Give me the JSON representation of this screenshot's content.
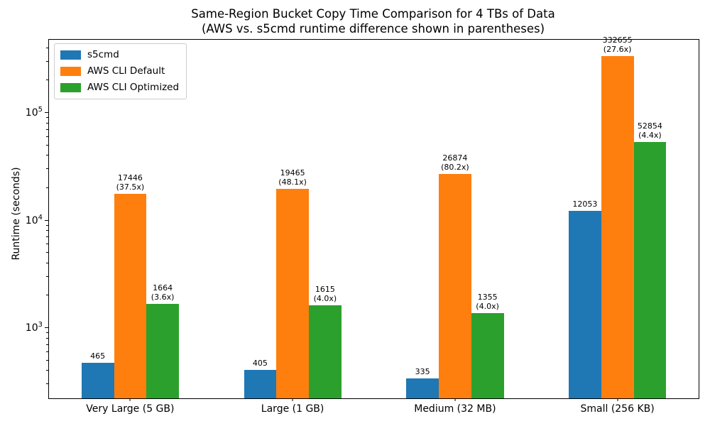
{
  "title": {
    "line1": "Same-Region Bucket Copy Time Comparison for 4 TBs of Data",
    "line2": "(AWS vs. s5cmd runtime difference shown in parentheses)"
  },
  "chart_data": {
    "type": "bar",
    "title": "Same-Region Bucket Copy Time Comparison for 4 TBs of Data\n(AWS vs. s5cmd runtime difference shown in parentheses)",
    "xlabel": "",
    "ylabel": "Runtime (seconds)",
    "yscale": "log",
    "ylim": [
      219,
      471000
    ],
    "grid": false,
    "legend_position": "upper left",
    "categories": [
      "Very Large (5 GB)",
      "Large (1 GB)",
      "Medium (32 MB)",
      "Small (256 KB)"
    ],
    "series": [
      {
        "name": "s5cmd",
        "color": "#1f77b4",
        "values": [
          465,
          405,
          335,
          12053
        ],
        "annotations": [
          "",
          "",
          "",
          ""
        ]
      },
      {
        "name": "AWS CLI Default",
        "color": "#ff7f0e",
        "values": [
          17446,
          19465,
          26874,
          332655
        ],
        "annotations": [
          "(37.5x)",
          "(48.1x)",
          "(80.2x)",
          "(27.6x)"
        ]
      },
      {
        "name": "AWS CLI Optimized",
        "color": "#2ca02c",
        "values": [
          1664,
          1615,
          1355,
          52854
        ],
        "annotations": [
          "(3.6x)",
          "(4.0x)",
          "(4.0x)",
          "(4.4x)"
        ]
      }
    ],
    "yticks": [
      {
        "value": 1000,
        "base": "10",
        "exp": "3"
      },
      {
        "value": 10000,
        "base": "10",
        "exp": "4"
      },
      {
        "value": 100000,
        "base": "10",
        "exp": "5"
      }
    ]
  }
}
